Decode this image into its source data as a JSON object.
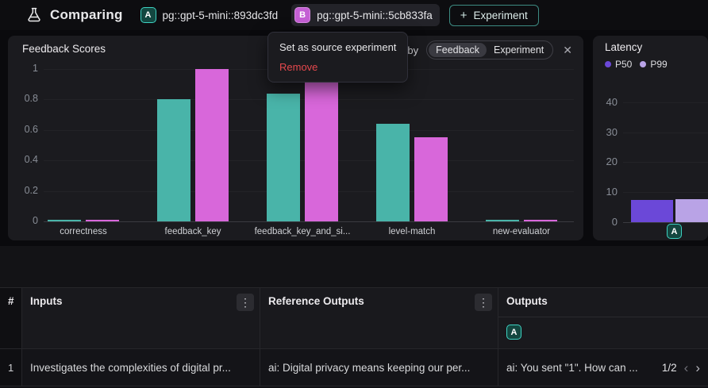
{
  "colors": {
    "series_a_teal": "#49b4a9",
    "series_b_magenta": "#d867da",
    "p50_purple": "#6b48d8",
    "p99_lavender": "#b9a3e6",
    "danger_red": "#e5484d",
    "accent_teal": "#3ed2c2"
  },
  "header": {
    "title": "Comparing",
    "experiments": [
      {
        "badge": "A",
        "label": "pg::gpt-5-mini::893dc3fd"
      },
      {
        "badge": "B",
        "label": "pg::gpt-5-mini::5cb833fa"
      }
    ],
    "add_button": "+ Experiment"
  },
  "context_menu": {
    "items": [
      {
        "label": "Set as source experiment",
        "danger": false
      },
      {
        "label": "Remove",
        "danger": true
      }
    ]
  },
  "feedback_panel": {
    "title": "Feedback Scores",
    "group_by_label": "up by",
    "segments": [
      "Feedback",
      "Experiment"
    ],
    "selected_segment": "Feedback",
    "close_icon": "✕"
  },
  "latency_panel": {
    "title": "Latency",
    "x_badge": "A"
  },
  "chart_data": [
    {
      "type": "bar",
      "title": "Feedback Scores",
      "categories": [
        "correctness",
        "feedback_key",
        "feedback_key_and_si...",
        "level-match",
        "new-evaluator"
      ],
      "series": [
        {
          "name": "A",
          "color": "#49b4a9",
          "values": [
            0.005,
            0.8,
            0.84,
            0.64,
            0.005
          ]
        },
        {
          "name": "B",
          "color": "#d867da",
          "values": [
            0.005,
            1.0,
            0.95,
            0.55,
            0.005
          ]
        }
      ],
      "ylim": [
        0,
        1
      ],
      "yticks": [
        1,
        0.8,
        0.6,
        0.4,
        0.2,
        0
      ],
      "grid": true,
      "legend_position": "none"
    },
    {
      "type": "bar",
      "title": "Latency",
      "categories": [
        "A"
      ],
      "series": [
        {
          "name": "P50",
          "color": "#6b48d8",
          "values": [
            7.5
          ]
        },
        {
          "name": "P99",
          "color": "#b9a3e6",
          "values": [
            7.8
          ]
        }
      ],
      "ylim": [
        0,
        45
      ],
      "yticks": [
        40,
        30,
        20,
        10,
        0
      ],
      "grid": true,
      "legend_position": "top-left"
    }
  ],
  "table": {
    "columns": [
      "#",
      "Inputs",
      "Reference Outputs",
      "Outputs"
    ],
    "kebab_icon": "⋮",
    "outputs_badge": "A",
    "rows": [
      {
        "num": "1",
        "inputs": "Investigates the complexities of digital pr...",
        "reference_outputs": "ai: Digital privacy means keeping our per...",
        "outputs": "ai: You sent \"1\". How can ...",
        "pagination": "1/2",
        "prev_icon": "‹",
        "next_icon": "›"
      }
    ]
  }
}
